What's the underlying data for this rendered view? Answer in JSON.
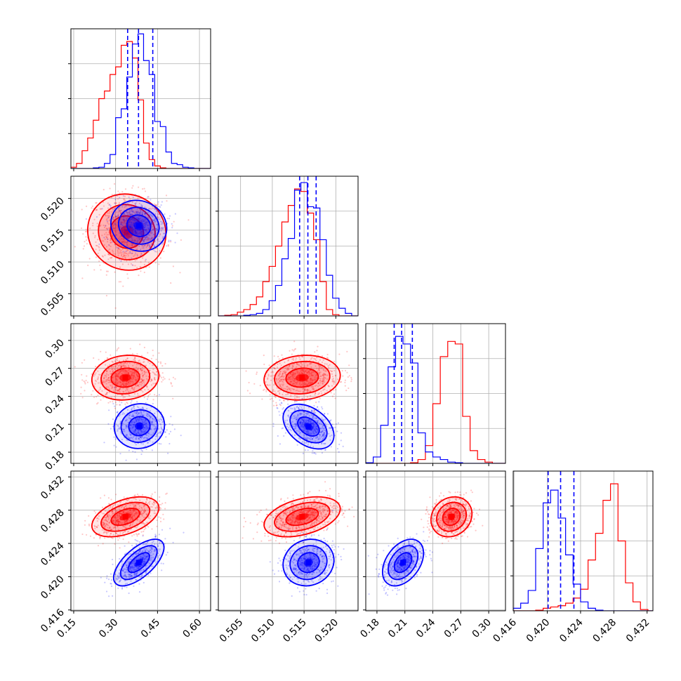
{
  "chart_data": {
    "type": "corner",
    "grid": true,
    "series_colors": [
      "#ff0000",
      "#0000ff"
    ],
    "parameters": [
      {
        "range": [
          0.14,
          0.64
        ],
        "ticks": [
          0.15,
          0.3,
          0.45,
          0.6
        ],
        "labels": [
          "0.15",
          "0.30",
          "0.45",
          "0.60"
        ]
      },
      {
        "range": [
          0.5015,
          0.5235
        ],
        "ticks": [
          0.505,
          0.51,
          0.515,
          0.52
        ],
        "labels": [
          "0.505",
          "0.510",
          "0.515",
          "0.520"
        ]
      },
      {
        "range": [
          0.168,
          0.318
        ],
        "ticks": [
          0.18,
          0.21,
          0.24,
          0.27,
          0.3
        ],
        "labels": [
          "0.18",
          "0.21",
          "0.24",
          "0.27",
          "0.30"
        ]
      },
      {
        "range": [
          0.4159,
          0.4327
        ],
        "ticks": [
          0.416,
          0.42,
          0.424,
          0.428,
          0.432
        ],
        "labels": [
          "0.416",
          "0.420",
          "0.424",
          "0.428",
          "0.432"
        ]
      }
    ],
    "histograms": [
      {
        "param": 0,
        "ymax": 1.1,
        "red": {
          "edges": [
            0.14,
            0.16,
            0.18,
            0.2,
            0.22,
            0.24,
            0.26,
            0.28,
            0.3,
            0.32,
            0.34,
            0.36,
            0.38,
            0.4,
            0.42,
            0.44,
            0.46,
            0.48,
            0.5,
            0.52,
            0.54,
            0.56,
            0.58,
            0.6,
            0.62,
            0.64
          ],
          "counts": [
            0.01,
            0.04,
            0.14,
            0.24,
            0.38,
            0.55,
            0.61,
            0.74,
            0.8,
            0.97,
            1.0,
            0.87,
            0.54,
            0.2,
            0.07,
            0.02,
            0.005,
            0,
            0,
            0,
            0,
            0,
            0,
            0,
            0
          ]
        },
        "blue": {
          "edges": [
            0.14,
            0.16,
            0.18,
            0.2,
            0.22,
            0.24,
            0.26,
            0.28,
            0.3,
            0.32,
            0.34,
            0.36,
            0.38,
            0.4,
            0.42,
            0.44,
            0.46,
            0.48,
            0.5,
            0.52,
            0.54,
            0.56,
            0.58,
            0.6,
            0.62,
            0.64
          ],
          "counts": [
            0,
            0,
            0,
            0,
            0.005,
            0.01,
            0.04,
            0.11,
            0.4,
            0.47,
            0.72,
            0.98,
            1.06,
            0.85,
            0.74,
            0.37,
            0.33,
            0.13,
            0.04,
            0.03,
            0.01,
            0.005,
            0,
            0,
            0
          ]
        },
        "quantiles": [
          0.343,
          0.382,
          0.433
        ]
      },
      {
        "param": 1,
        "ymax": 1.1,
        "red": {
          "edges": [
            0.5015,
            0.5025,
            0.5035,
            0.5045,
            0.5055,
            0.5065,
            0.5075,
            0.5085,
            0.5095,
            0.5105,
            0.5115,
            0.5125,
            0.5135,
            0.5145,
            0.5155,
            0.5165,
            0.5175,
            0.5185,
            0.5195,
            0.5205,
            0.5215,
            0.5225,
            0.5235
          ],
          "counts": [
            0,
            0.005,
            0.01,
            0.03,
            0.05,
            0.09,
            0.15,
            0.27,
            0.39,
            0.55,
            0.74,
            0.87,
            1.0,
            0.98,
            0.81,
            0.6,
            0.27,
            0.05,
            0.01,
            0,
            0,
            0
          ]
        },
        "blue": {
          "edges": [
            0.5015,
            0.5025,
            0.5035,
            0.5045,
            0.5055,
            0.5065,
            0.5075,
            0.5085,
            0.5095,
            0.5105,
            0.5115,
            0.5125,
            0.5135,
            0.5145,
            0.5155,
            0.5165,
            0.5175,
            0.5185,
            0.5195,
            0.5205,
            0.5215,
            0.5225,
            0.5235
          ],
          "counts": [
            0,
            0,
            0,
            0,
            0.005,
            0.01,
            0.02,
            0.05,
            0.12,
            0.24,
            0.45,
            0.61,
            0.99,
            1.05,
            0.86,
            0.85,
            0.6,
            0.32,
            0.14,
            0.06,
            0.02,
            0
          ]
        },
        "quantiles": [
          0.5143,
          0.5156,
          0.5169
        ]
      },
      {
        "param": 2,
        "ymax": 1.1,
        "red": {
          "edges": [
            0.168,
            0.176,
            0.184,
            0.192,
            0.2,
            0.208,
            0.216,
            0.224,
            0.232,
            0.24,
            0.248,
            0.256,
            0.264,
            0.272,
            0.28,
            0.288,
            0.296,
            0.304,
            0.312,
            0.32
          ],
          "counts": [
            0,
            0,
            0,
            0,
            0,
            0,
            0.005,
            0.03,
            0.14,
            0.47,
            0.84,
            0.96,
            0.94,
            0.37,
            0.1,
            0.03,
            0.01,
            0,
            0
          ]
        },
        "blue": {
          "edges": [
            0.168,
            0.176,
            0.184,
            0.192,
            0.2,
            0.208,
            0.216,
            0.224,
            0.232,
            0.24,
            0.248,
            0.256,
            0.264,
            0.272,
            0.28,
            0.288,
            0.296,
            0.304,
            0.312,
            0.32
          ],
          "counts": [
            0.005,
            0.05,
            0.3,
            0.76,
            1.0,
            0.94,
            0.79,
            0.24,
            0.09,
            0.05,
            0.03,
            0.01,
            0.005,
            0,
            0,
            0,
            0,
            0,
            0
          ]
        },
        "quantiles": [
          0.1985,
          0.2065,
          0.218
        ]
      },
      {
        "param": 3,
        "ymax": 1.1,
        "red": {
          "edges": [
            0.4159,
            0.4168,
            0.4177,
            0.4186,
            0.4195,
            0.4204,
            0.4213,
            0.4222,
            0.4231,
            0.424,
            0.4249,
            0.4258,
            0.4267,
            0.4276,
            0.4285,
            0.4294,
            0.4303,
            0.4312,
            0.4321,
            0.4327
          ],
          "counts": [
            0,
            0,
            0,
            0.005,
            0.02,
            0.03,
            0.04,
            0.06,
            0.1,
            0.17,
            0.4,
            0.61,
            0.87,
            1.0,
            0.55,
            0.22,
            0.07,
            0.01,
            0
          ]
        },
        "blue": {
          "edges": [
            0.4159,
            0.4168,
            0.4177,
            0.4186,
            0.4195,
            0.4204,
            0.4213,
            0.4222,
            0.4231,
            0.424,
            0.4249,
            0.4258,
            0.4267,
            0.4276,
            0.4285,
            0.4294,
            0.4303,
            0.4312,
            0.4321,
            0.4327
          ],
          "counts": [
            0.02,
            0.06,
            0.16,
            0.49,
            0.85,
            0.95,
            0.73,
            0.44,
            0.21,
            0.07,
            0.02,
            0.005,
            0,
            0,
            0,
            0,
            0,
            0,
            0
          ]
        },
        "quantiles": [
          0.4201,
          0.4216,
          0.4232
        ]
      }
    ],
    "scatter_panels": [
      {
        "x_param": 0,
        "y_param": 1,
        "red": {
          "mean": [
            0.34,
            0.5147
          ],
          "sd": [
            0.07,
            0.003
          ],
          "rho": -0.05,
          "n": 700
        },
        "blue": {
          "mean": [
            0.383,
            0.5157
          ],
          "sd": [
            0.05,
            0.002
          ],
          "rho": -0.1,
          "n": 500
        }
      },
      {
        "x_param": 0,
        "y_param": 2,
        "red": {
          "mean": [
            0.335,
            0.26
          ],
          "sd": [
            0.06,
            0.012
          ],
          "rho": 0.1,
          "n": 700
        },
        "blue": {
          "mean": [
            0.385,
            0.208
          ],
          "sd": [
            0.045,
            0.012
          ],
          "rho": 0.05,
          "n": 500
        }
      },
      {
        "x_param": 1,
        "y_param": 2,
        "red": {
          "mean": [
            0.5147,
            0.26
          ],
          "sd": [
            0.003,
            0.012
          ],
          "rho": 0.1,
          "n": 700
        },
        "blue": {
          "mean": [
            0.5157,
            0.2075
          ],
          "sd": [
            0.002,
            0.012
          ],
          "rho": -0.4,
          "n": 500
        }
      },
      {
        "x_param": 0,
        "y_param": 3,
        "red": {
          "mean": [
            0.335,
            0.4272
          ],
          "sd": [
            0.06,
            0.0012
          ],
          "rho": 0.45,
          "n": 700
        },
        "blue": {
          "mean": [
            0.383,
            0.4217
          ],
          "sd": [
            0.045,
            0.0014
          ],
          "rho": 0.65,
          "n": 500
        }
      },
      {
        "x_param": 1,
        "y_param": 3,
        "red": {
          "mean": [
            0.5147,
            0.4272
          ],
          "sd": [
            0.003,
            0.0012
          ],
          "rho": 0.4,
          "n": 700
        },
        "blue": {
          "mean": [
            0.5157,
            0.4217
          ],
          "sd": [
            0.002,
            0.0014
          ],
          "rho": 0.1,
          "n": 500
        }
      },
      {
        "x_param": 2,
        "y_param": 3,
        "red": {
          "mean": [
            0.26,
            0.4272
          ],
          "sd": [
            0.011,
            0.0012
          ],
          "rho": 0.15,
          "n": 700
        },
        "blue": {
          "mean": [
            0.208,
            0.4217
          ],
          "sd": [
            0.011,
            0.0014
          ],
          "rho": 0.4,
          "n": 500
        }
      }
    ]
  }
}
